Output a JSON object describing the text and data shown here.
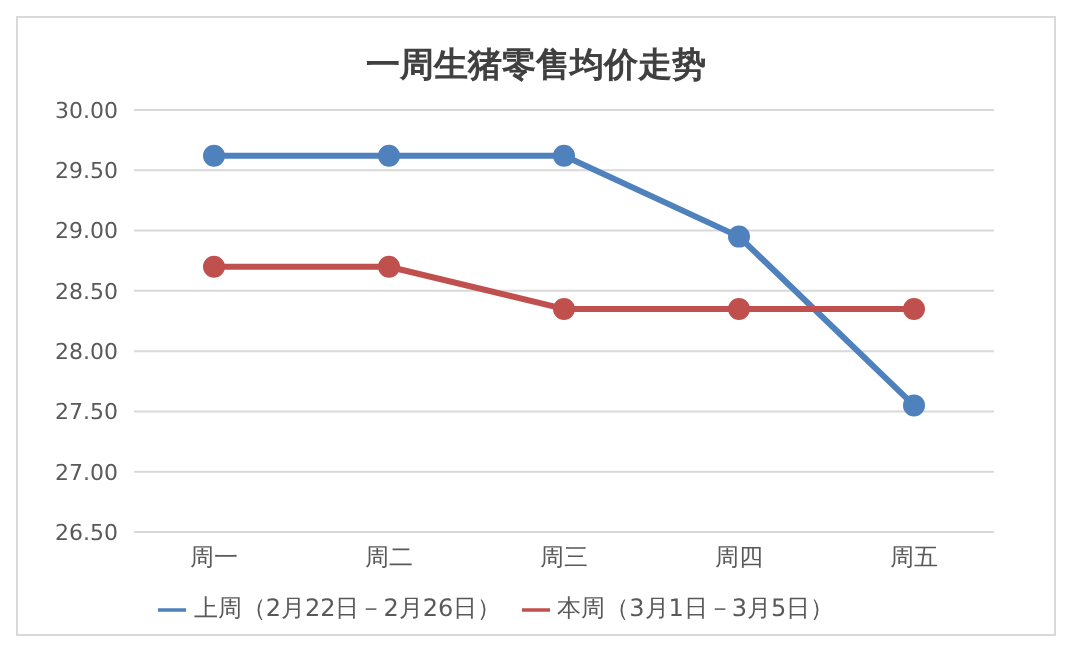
{
  "chart_data": {
    "type": "line",
    "title": "一周生猪零售均价走势",
    "categories": [
      "周一",
      "周二",
      "周三",
      "周四",
      "周五"
    ],
    "series": [
      {
        "name": "上周（2月22日－2月26日）",
        "color": "#4f81bd",
        "values": [
          29.62,
          29.62,
          29.62,
          28.95,
          27.55
        ]
      },
      {
        "name": "本周（3月1日－3月5日）",
        "color": "#c0504d",
        "values": [
          28.7,
          28.7,
          28.35,
          28.35,
          28.35
        ]
      }
    ],
    "ylim": [
      26.5,
      30
    ],
    "yticks": [
      {
        "value": 26.5,
        "label": "26.50"
      },
      {
        "value": 27,
        "label": "27.00"
      },
      {
        "value": 27.5,
        "label": "27.50"
      },
      {
        "value": 28,
        "label": "28.00"
      },
      {
        "value": 28.5,
        "label": "28.50"
      },
      {
        "value": 29,
        "label": "29.00"
      },
      {
        "value": 29.5,
        "label": "29.50"
      },
      {
        "value": 30,
        "label": "30.00"
      }
    ],
    "grid": "y",
    "legend": "bottom",
    "marker": "circle",
    "line_style": "solid"
  }
}
